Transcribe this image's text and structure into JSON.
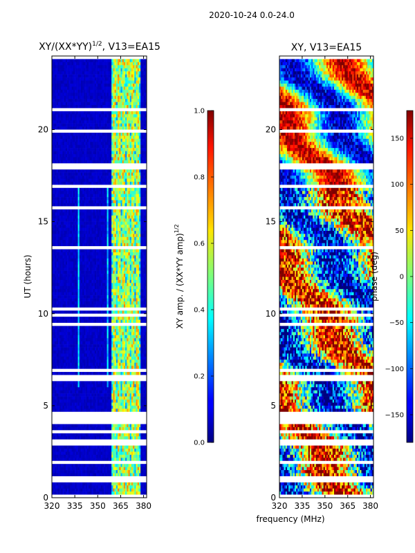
{
  "suptitle": "2020-10-24 0.0-24.0",
  "chart_data": [
    {
      "type": "heatmap",
      "title": "XY/(XX*YY)",
      "title_exponent": "1/2",
      "title_suffix": ", V13=EA15",
      "xlabel": "",
      "ylabel": "UT (hours)",
      "xlim": [
        320,
        382
      ],
      "ylim": [
        0,
        24
      ],
      "xticks": [
        "320",
        "335",
        "350",
        "365",
        "380"
      ],
      "yticks": [
        "0",
        "5",
        "10",
        "15",
        "20"
      ],
      "xtick_values": [
        320,
        335,
        350,
        365,
        380
      ],
      "ytick_values": [
        0,
        5,
        10,
        15,
        20
      ],
      "colormap": "jet",
      "description_values": {
        "background_amplitude": 0.05,
        "bright_channel_band_MHz": [
          359,
          378
        ],
        "bright_band_amplitude_range": [
          0.4,
          0.75
        ],
        "narrow_feature_MHz": 337.5,
        "narrow_feature_UT_range": [
          6.0,
          17.0
        ],
        "narrow_feature_amplitude": 0.3
      },
      "blank_UT_ranges": [
        [
          4.0,
          4.6
        ],
        [
          2.9,
          3.1
        ],
        [
          13.5,
          13.7
        ],
        [
          10.2,
          10.4
        ],
        [
          19.8,
          20.0
        ],
        [
          17.9,
          18.1
        ]
      ],
      "colorbar": {
        "label": "XY amp. / (XX*YY amp)",
        "label_exponent": "1/2",
        "range": [
          0.0,
          1.0
        ],
        "ticks": [
          "0.0",
          "0.2",
          "0.4",
          "0.6",
          "0.8",
          "1.0"
        ],
        "tick_values": [
          0.0,
          0.2,
          0.4,
          0.6,
          0.8,
          1.0
        ]
      }
    },
    {
      "type": "heatmap",
      "title": "XY, V13=EA15",
      "xlabel": "frequency (MHz)",
      "ylabel": "",
      "xlim": [
        320,
        382
      ],
      "ylim": [
        0,
        24
      ],
      "xticks": [
        "320",
        "335",
        "350",
        "365",
        "380"
      ],
      "yticks": [
        "0",
        "5",
        "10",
        "15",
        "20"
      ],
      "xtick_values": [
        320,
        335,
        350,
        365,
        380
      ],
      "ytick_values": [
        0,
        5,
        10,
        15,
        20
      ],
      "colormap": "jet",
      "blank_UT_ranges": [
        [
          4.0,
          4.6
        ],
        [
          2.9,
          3.1
        ],
        [
          13.5,
          13.7
        ],
        [
          10.2,
          10.4
        ],
        [
          19.8,
          20.0
        ],
        [
          17.9,
          18.1
        ]
      ],
      "colorbar": {
        "label": "phase (deg)",
        "range": [
          -180,
          180
        ],
        "ticks": [
          "150",
          "100",
          "50",
          "0",
          "−50",
          "−100",
          "−150"
        ],
        "tick_values": [
          150,
          100,
          50,
          0,
          -50,
          -100,
          -150
        ]
      }
    }
  ]
}
